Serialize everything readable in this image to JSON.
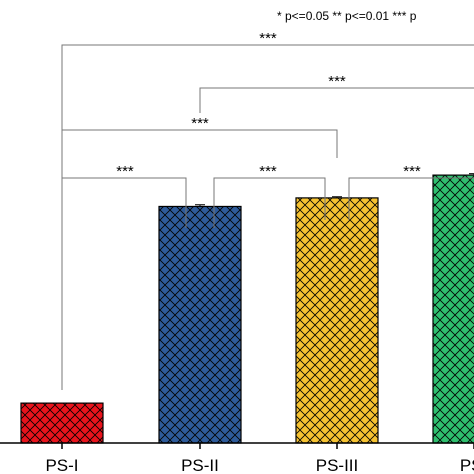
{
  "chart_data": {
    "type": "bar",
    "categories": [
      "PS-I",
      "PS-II",
      "PS-III",
      "PS-IV"
    ],
    "category_labels_shown": [
      "PS-I",
      "PS-II",
      "PS-III",
      "PS-"
    ],
    "values": [
      14,
      83,
      86,
      94
    ],
    "errors": [
      0,
      0.6,
      0.4,
      0.5
    ],
    "colors": [
      "#e8141c",
      "#2e5b9a",
      "#f5c232",
      "#2fbf6e"
    ],
    "pattern": "crosshatch",
    "ylim": [
      0,
      100
    ],
    "legend_text": "* p<=0.05    ** p<=0.01    *** p",
    "significance": [
      {
        "from": 0,
        "to": 3,
        "label": "***"
      },
      {
        "from": 1,
        "to": 3,
        "label": "***"
      },
      {
        "from": 0,
        "to": 2,
        "label": "***"
      },
      {
        "from": 0,
        "to": 1,
        "label": "***"
      },
      {
        "from": 1,
        "to": 2,
        "label": "***"
      },
      {
        "from": 2,
        "to": 3,
        "label": "***"
      }
    ]
  }
}
